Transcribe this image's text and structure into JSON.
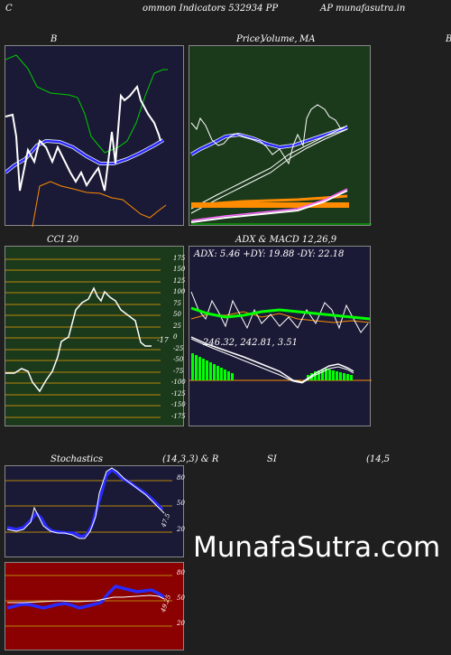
{
  "header": {
    "left": "C",
    "title": "ommon  Indicators 532934  PP",
    "right": "AP munafasutra.in"
  },
  "panels": {
    "bollinger": {
      "title": "B"
    },
    "price_ma": {
      "title": "Price,",
      "title2": "Volume,",
      "title3": "MA",
      "edge": "B"
    },
    "cci": {
      "title": "CCI 20",
      "current": "-17",
      "ticks": [
        "175",
        "150",
        "125",
        "100",
        "75",
        "50",
        "25",
        "0",
        "-25",
        "-50",
        "-75",
        "-100",
        "-125",
        "-150",
        "-175"
      ]
    },
    "adx_macd": {
      "title": "ADX  & MACD 12,26,9",
      "adx_line": "ADX: 5.46   +DY: 19.88  -DY: 22.18",
      "macd_line": "246.32,  242.81,  3.51"
    },
    "stochastics": {
      "title": "Stochastics",
      "params": "(14,3,3) & R",
      "ticks": [
        "80",
        "50",
        "20"
      ],
      "current": "47.5"
    },
    "rsi": {
      "title": "SI",
      "params": "(14,5",
      "ticks": [
        "80",
        "50",
        "20"
      ],
      "current": "49.25"
    }
  },
  "watermark": "MunafaSutra.com",
  "colors": {
    "navy_panel": "#1a1a36",
    "green_panel": "#1b3a1b",
    "red_panel": "#8b0000",
    "blue_line": "#2a2aff",
    "orange_line": "#ff8c00"
  }
}
